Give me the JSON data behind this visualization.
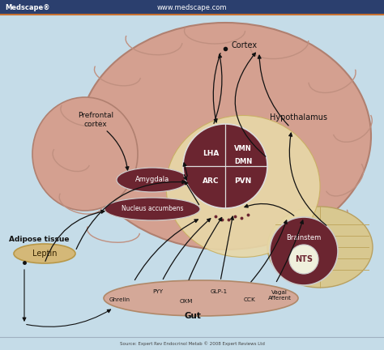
{
  "bg_color": "#c5dce8",
  "header_bg": "#2b3f6e",
  "header_bottom_line": "#c87030",
  "brain_color": "#d4a090",
  "brain_edge": "#b08070",
  "hypothalamus_bg": "#e8d8a8",
  "cerebellum_color": "#d8c890",
  "dark_maroon": "#6b2530",
  "gut_color": "#d4a898",
  "leptin_color": "#d4b878",
  "nts_inner": "#f0f0dc",
  "white": "#ffffff",
  "black": "#111111",
  "text_dark": "#111111",
  "arrow_color": "#111111",
  "source_text": "Source: Expert Rev Endocrinol Metab © 2008 Expert Reviews Ltd",
  "medscape_text": "Medscape®",
  "url_text": "www.medscape.com",
  "labels": {
    "cortex": "Cortex",
    "prefrontal": "Prefrontal\ncortex",
    "hypothalamus": "Hypothalamus",
    "lha": "LHA",
    "vmn": "VMN",
    "dmn": "DMN",
    "arc": "ARC",
    "pvn": "PVN",
    "amygdala": "Amygdala",
    "nucleus": "Nucleus accumbens",
    "adipose": "Adipose tissue",
    "leptin": "Leptin",
    "gut": "Gut",
    "ghrelin": "Ghrelin",
    "pyy": "PYY",
    "oxm": "OXM",
    "glp1": "GLP-1",
    "cck": "CCK",
    "vagal": "Vagal\nAfferent",
    "brainstem": "Brainstem",
    "nts": "NTS"
  }
}
